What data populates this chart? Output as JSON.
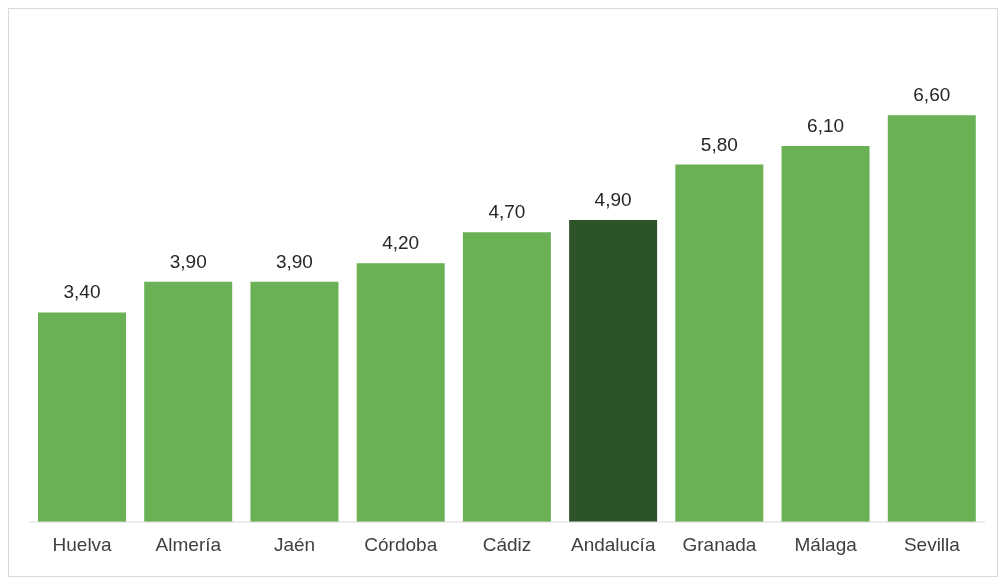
{
  "chart_data": {
    "type": "bar",
    "categories": [
      "Huelva",
      "Almería",
      "Jaén",
      "Córdoba",
      "Cádiz",
      "Andalucía",
      "Granada",
      "Málaga",
      "Sevilla"
    ],
    "values": [
      3.4,
      3.9,
      3.9,
      4.2,
      4.7,
      4.9,
      5.8,
      6.1,
      6.6
    ],
    "value_labels": [
      "3,40",
      "3,90",
      "3,90",
      "4,20",
      "4,70",
      "4,90",
      "5,80",
      "6,10",
      "6,60"
    ],
    "colors": [
      "#6ab155",
      "#6ab155",
      "#6ab155",
      "#6ab155",
      "#6ab155",
      "#2d5429",
      "#6ab155",
      "#6ab155",
      "#6ab155"
    ],
    "grid": false,
    "legend": false
  }
}
